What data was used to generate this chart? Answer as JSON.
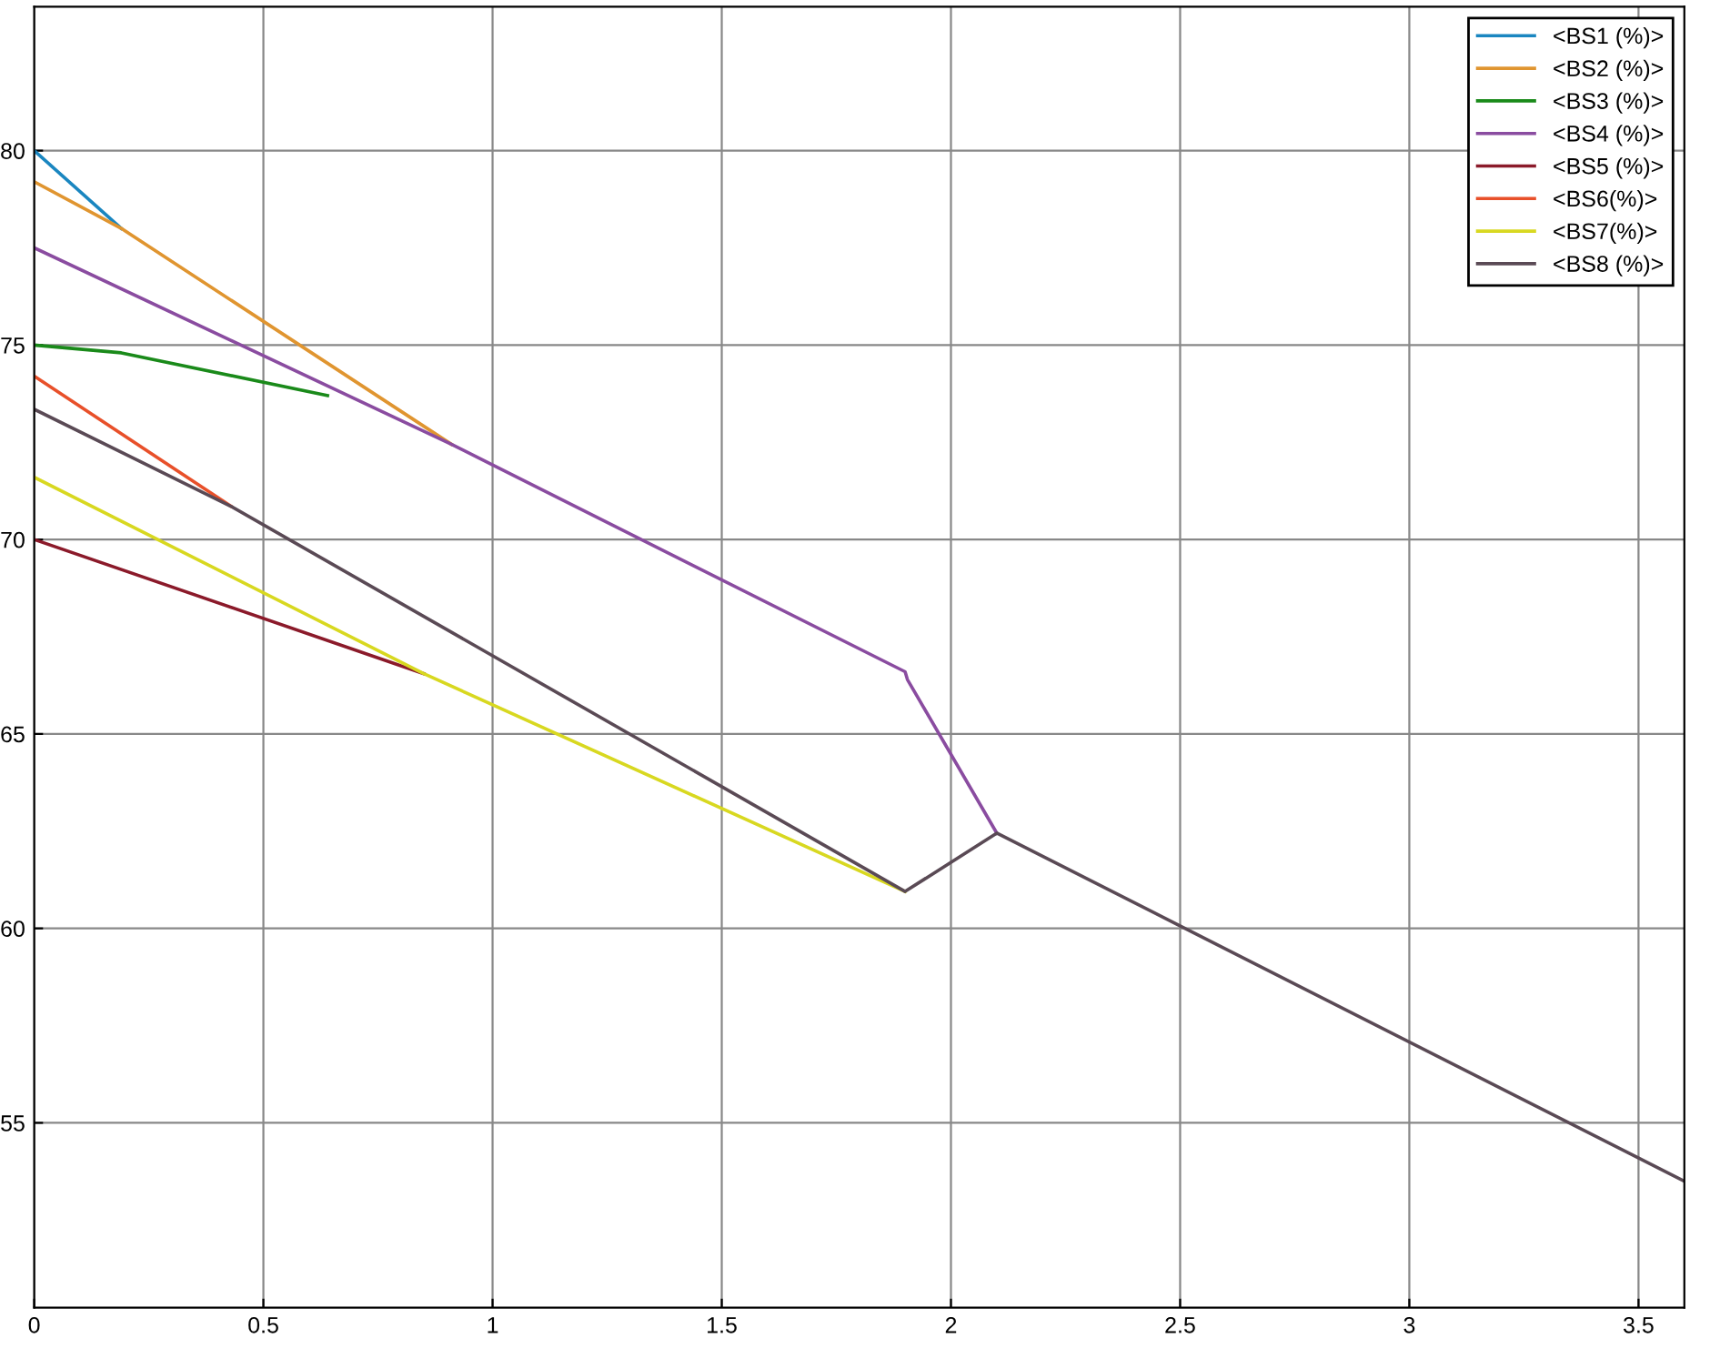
{
  "chart_data": {
    "type": "line",
    "xlim": [
      0,
      3.6
    ],
    "ylim": [
      50.25,
      83.7
    ],
    "xticks": [
      0,
      0.5,
      1,
      1.5,
      2,
      2.5,
      3,
      3.5
    ],
    "yticks": [
      55,
      60,
      65,
      70,
      75,
      80
    ],
    "grid": true,
    "legend": "top right",
    "line_style": "solid",
    "marker": "none",
    "series": [
      {
        "name": "<BS1 (%)>",
        "color": "#1a86c0",
        "x": [
          0,
          0.19
        ],
        "values": [
          80.0,
          78.0
        ]
      },
      {
        "name": "<BS2 (%)>",
        "color": "#e09530",
        "x": [
          0,
          0.19,
          0.91
        ],
        "values": [
          79.2,
          78.0,
          72.45
        ]
      },
      {
        "name": "<BS3 (%)>",
        "color": "#1a8a1a",
        "x": [
          0,
          0.19,
          0.64
        ],
        "values": [
          75.0,
          74.8,
          73.7
        ]
      },
      {
        "name": "<BS4 (%)>",
        "color": "#8a4ca0",
        "x": [
          0,
          0.91,
          1.9,
          1.905,
          2.1
        ],
        "values": [
          77.5,
          72.45,
          66.6,
          66.4,
          62.45
        ]
      },
      {
        "name": "<BS5 (%)>",
        "color": "#8b1a2a",
        "x": [
          0,
          0.85
        ],
        "values": [
          70.0,
          66.55
        ]
      },
      {
        "name": "<BS6(%)>",
        "color": "#e8502a",
        "x": [
          0,
          0.43
        ],
        "values": [
          74.2,
          70.85
        ]
      },
      {
        "name": "<BS7(%)>",
        "color": "#d8d820",
        "x": [
          0,
          0.85,
          1.9
        ],
        "values": [
          71.6,
          66.55,
          60.95
        ]
      },
      {
        "name": "<BS8 (%)>",
        "color": "#5a4a55",
        "x": [
          0,
          0.43,
          1.9,
          2.1,
          3.6
        ],
        "values": [
          73.35,
          70.85,
          60.95,
          62.45,
          53.5
        ]
      }
    ]
  }
}
